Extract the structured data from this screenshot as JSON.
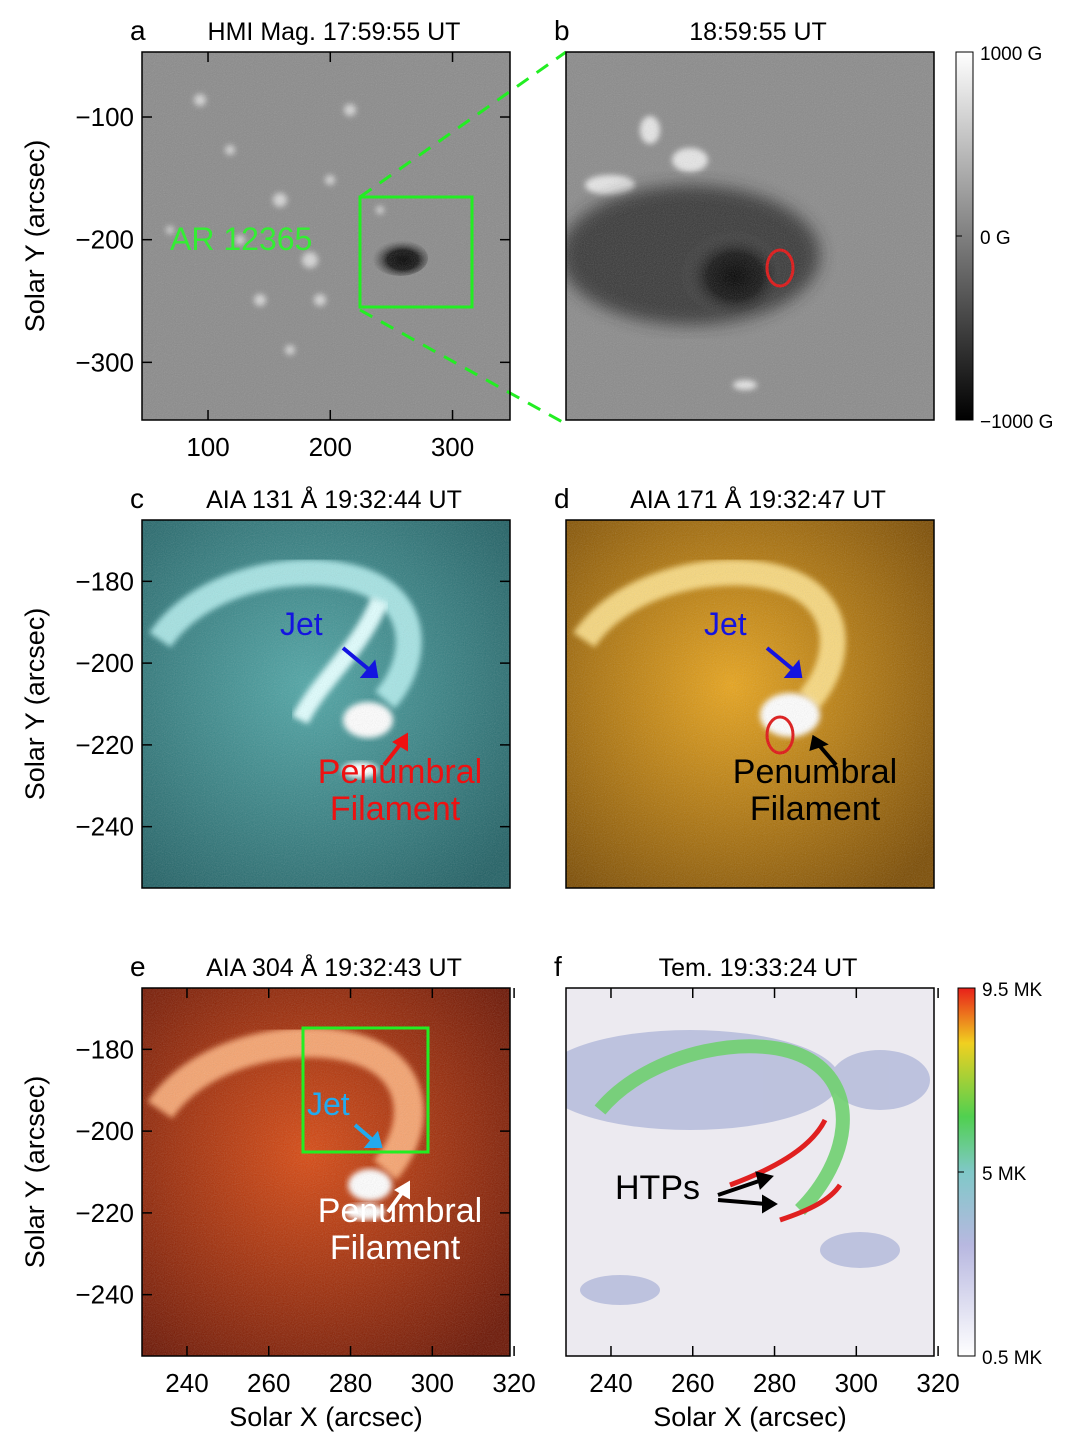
{
  "figure": {
    "panels": [
      {
        "letter": "a",
        "title": "HMI Mag. 17:59:55 UT",
        "xlim": [
          46,
          347
        ],
        "ylim": [
          -347,
          -47
        ],
        "xticks": [
          100,
          200,
          300
        ],
        "yticks": [
          {
            "value": -100,
            "label": "−100"
          },
          {
            "value": -200,
            "label": "−200"
          },
          {
            "value": -300,
            "label": "−300"
          }
        ],
        "ylabel": "Solar Y (arcsec)",
        "annotations": [
          {
            "text": "AR 12365",
            "color": "#33ee33"
          }
        ]
      },
      {
        "letter": "b",
        "title": "18:59:55 UT",
        "colorbar": [
          "1000 G",
          "0 G",
          "−1000 G"
        ]
      },
      {
        "letter": "c",
        "title": "AIA 131 Å 19:32:44 UT",
        "xlim": [
          229,
          319
        ],
        "ylim": [
          -255,
          -165
        ],
        "yticks": [
          {
            "value": -180,
            "label": "−180"
          },
          {
            "value": -200,
            "label": "−200"
          },
          {
            "value": -220,
            "label": "−220"
          },
          {
            "value": -240,
            "label": "−240"
          }
        ],
        "ylabel": "Solar Y (arcsec)",
        "annotations": [
          {
            "text": "Jet",
            "color": "#1414e0"
          },
          {
            "text": "Penumbral",
            "color": "#ee1111"
          },
          {
            "text": "Filament",
            "color": "#ee1111"
          }
        ]
      },
      {
        "letter": "d",
        "title": "AIA 171 Å 19:32:47 UT",
        "annotations": [
          {
            "text": "Jet",
            "color": "#1414e0"
          },
          {
            "text": "Penumbral",
            "color": "#000000"
          },
          {
            "text": "Filament",
            "color": "#000000"
          }
        ]
      },
      {
        "letter": "e",
        "title": "AIA 304 Å 19:32:43 UT",
        "xlim": [
          229,
          319
        ],
        "ylim": [
          -255,
          -165
        ],
        "xticks": [
          240,
          260,
          280,
          300,
          320
        ],
        "yticks": [
          {
            "value": -180,
            "label": "−180"
          },
          {
            "value": -200,
            "label": "−200"
          },
          {
            "value": -220,
            "label": "−220"
          },
          {
            "value": -240,
            "label": "−240"
          }
        ],
        "ylabel": "Solar Y (arcsec)",
        "xlabel": "Solar X (arcsec)",
        "annotations": [
          {
            "text": "Jet",
            "color": "#22aaee"
          },
          {
            "text": "Penumbral",
            "color": "#ffffff"
          },
          {
            "text": "Filament",
            "color": "#ffffff"
          }
        ]
      },
      {
        "letter": "f",
        "title": "Tem. 19:33:24 UT",
        "xlim": [
          229,
          319
        ],
        "xticks": [
          240,
          260,
          280,
          300,
          320
        ],
        "xlabel": "Solar X (arcsec)",
        "annotations": [
          {
            "text": "HTPs",
            "color": "#000000"
          }
        ],
        "colorbar": [
          "9.5 MK",
          "5 MK",
          "0.5 MK"
        ]
      }
    ]
  }
}
